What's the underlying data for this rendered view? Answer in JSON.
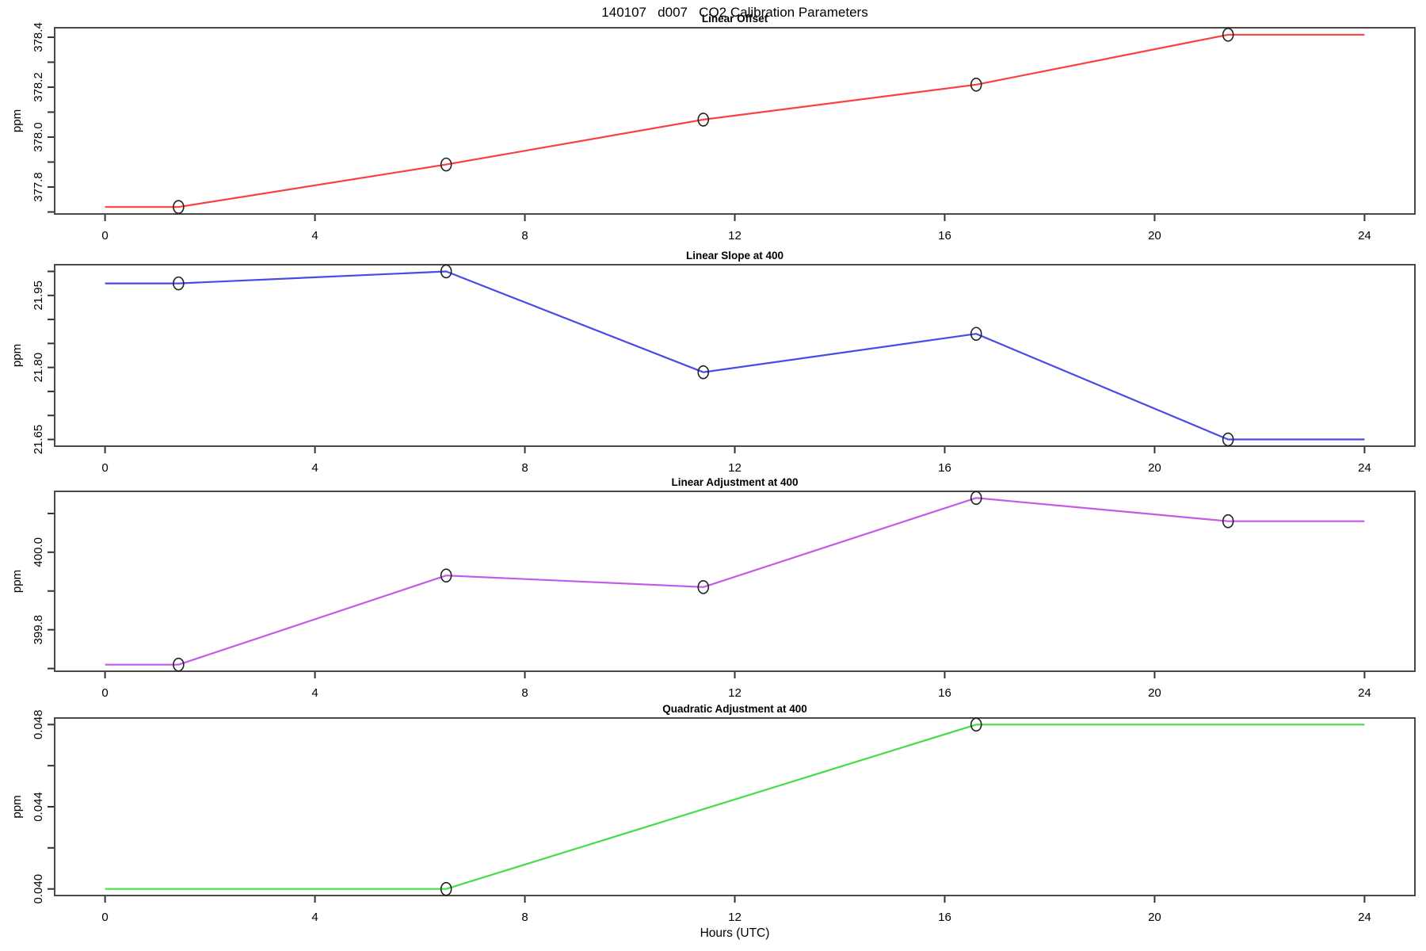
{
  "title": "140107   d007   CO2 Calibration Parameters",
  "x_axis": {
    "label": "Hours (UTC)",
    "ticks": [
      0,
      4,
      8,
      12,
      16,
      20,
      24
    ],
    "lim": [
      -0.96,
      24.96
    ]
  },
  "chart_data": [
    {
      "type": "line",
      "title": "Linear Offset",
      "ylabel": "ppm",
      "color": "#f94040",
      "x": [
        0,
        1.4,
        6.5,
        11.4,
        16.6,
        21.4,
        24
      ],
      "y": [
        377.72,
        377.72,
        377.89,
        378.07,
        378.21,
        378.41,
        378.41
      ],
      "markers_x": [
        1.4,
        6.5,
        11.4,
        16.6,
        21.4
      ],
      "markers_y": [
        377.72,
        377.89,
        378.07,
        378.21,
        378.41
      ],
      "ylim": [
        377.692,
        378.438
      ],
      "yticks": [
        377.7,
        377.8,
        377.9,
        378.0,
        378.1,
        378.2,
        378.3,
        378.4
      ],
      "ytick_labels": [
        "",
        "377.8",
        "",
        "378.0",
        "",
        "378.2",
        "",
        "378.4"
      ]
    },
    {
      "type": "line",
      "title": "Linear Slope at 400",
      "ylabel": "ppm",
      "color": "#4a4ae8",
      "x": [
        0,
        1.4,
        6.5,
        11.4,
        16.6,
        21.4,
        24
      ],
      "y": [
        21.975,
        21.975,
        22.0,
        21.79,
        21.87,
        21.65,
        21.65
      ],
      "markers_x": [
        1.4,
        6.5,
        11.4,
        16.6,
        21.4
      ],
      "markers_y": [
        21.975,
        22.0,
        21.79,
        21.87,
        21.65
      ],
      "ylim": [
        21.636,
        22.014
      ],
      "yticks": [
        21.65,
        21.7,
        21.75,
        21.8,
        21.85,
        21.9,
        21.95,
        22.0
      ],
      "ytick_labels": [
        "21.65",
        "",
        "",
        "21.80",
        "",
        "",
        "21.95",
        ""
      ]
    },
    {
      "type": "line",
      "title": "Linear Adjustment at 400",
      "ylabel": "ppm",
      "color": "#c45ae8",
      "x": [
        0,
        1.4,
        6.5,
        11.4,
        16.6,
        21.4,
        24
      ],
      "y": [
        399.71,
        399.71,
        399.94,
        399.91,
        400.14,
        400.08,
        400.08
      ],
      "markers_x": [
        1.4,
        6.5,
        11.4,
        16.6,
        21.4
      ],
      "markers_y": [
        399.71,
        399.94,
        399.91,
        400.14,
        400.08
      ],
      "ylim": [
        399.693,
        400.157
      ],
      "yticks": [
        399.7,
        399.8,
        399.9,
        400.0,
        400.1
      ],
      "ytick_labels": [
        "",
        "399.8",
        "",
        "400.0",
        ""
      ]
    },
    {
      "type": "line",
      "title": "Quadratic Adjustment at 400",
      "ylabel": "ppm",
      "color": "#45dd45",
      "x": [
        0,
        6.5,
        16.6,
        24
      ],
      "y": [
        0.04,
        0.04,
        0.048,
        0.048
      ],
      "markers_x": [
        6.5,
        16.6
      ],
      "markers_y": [
        0.04,
        0.048
      ],
      "ylim": [
        0.03968,
        0.04832
      ],
      "yticks": [
        0.04,
        0.042,
        0.044,
        0.046,
        0.048
      ],
      "ytick_labels": [
        "0.040",
        "",
        "0.044",
        "",
        "0.048"
      ]
    }
  ]
}
